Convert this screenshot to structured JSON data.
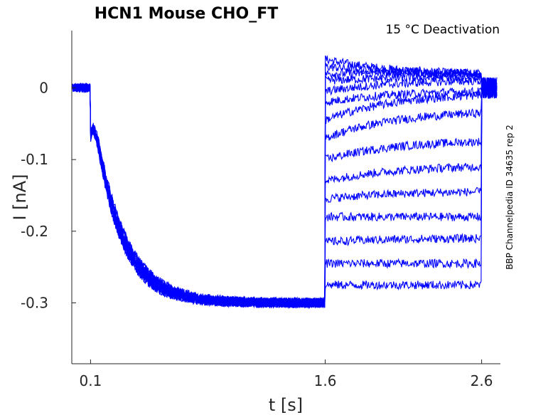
{
  "chart_data": {
    "type": "line",
    "title": "HCN1  Mouse  CHO_FT",
    "subtitle": "15 °C  Deactivation",
    "side_note": "BBP Channelpedia ID 34635 rep 2",
    "xlabel": "t [s]",
    "ylabel": "I [nA]",
    "xlim": [
      -0.02,
      2.72
    ],
    "ylim": [
      -0.385,
      0.08
    ],
    "x_ticks": [
      {
        "value": 0.1,
        "label": "0.1"
      },
      {
        "value": 1.6,
        "label": "1.6"
      },
      {
        "value": 2.6,
        "label": "2.6"
      }
    ],
    "y_ticks": [
      {
        "value": 0,
        "label": "0"
      },
      {
        "value": -0.1,
        "label": "-0.1"
      },
      {
        "value": -0.2,
        "label": "-0.2"
      },
      {
        "value": -0.3,
        "label": "-0.3"
      }
    ],
    "color": "#0000ff",
    "protocol": {
      "baseline_end_s": 0.1,
      "activation_end_s": 1.6,
      "test_end_s": 2.6,
      "activation_steady_nA": -0.3,
      "activation_tau_s": 0.16
    },
    "series": [
      {
        "start_nA": 0.04,
        "end_nA": 0.02
      },
      {
        "start_nA": 0.03,
        "end_nA": 0.02
      },
      {
        "start_nA": 0.02,
        "end_nA": 0.02
      },
      {
        "start_nA": 0.01,
        "end_nA": 0.015
      },
      {
        "start_nA": -0.005,
        "end_nA": 0.01
      },
      {
        "start_nA": -0.02,
        "end_nA": -0.005
      },
      {
        "start_nA": -0.045,
        "end_nA": -0.01
      },
      {
        "start_nA": -0.07,
        "end_nA": -0.035
      },
      {
        "start_nA": -0.1,
        "end_nA": -0.075
      },
      {
        "start_nA": -0.13,
        "end_nA": -0.11
      },
      {
        "start_nA": -0.155,
        "end_nA": -0.145
      },
      {
        "start_nA": -0.18,
        "end_nA": -0.18
      },
      {
        "start_nA": -0.215,
        "end_nA": -0.21
      },
      {
        "start_nA": -0.245,
        "end_nA": -0.245
      },
      {
        "start_nA": -0.275,
        "end_nA": -0.275
      }
    ]
  }
}
